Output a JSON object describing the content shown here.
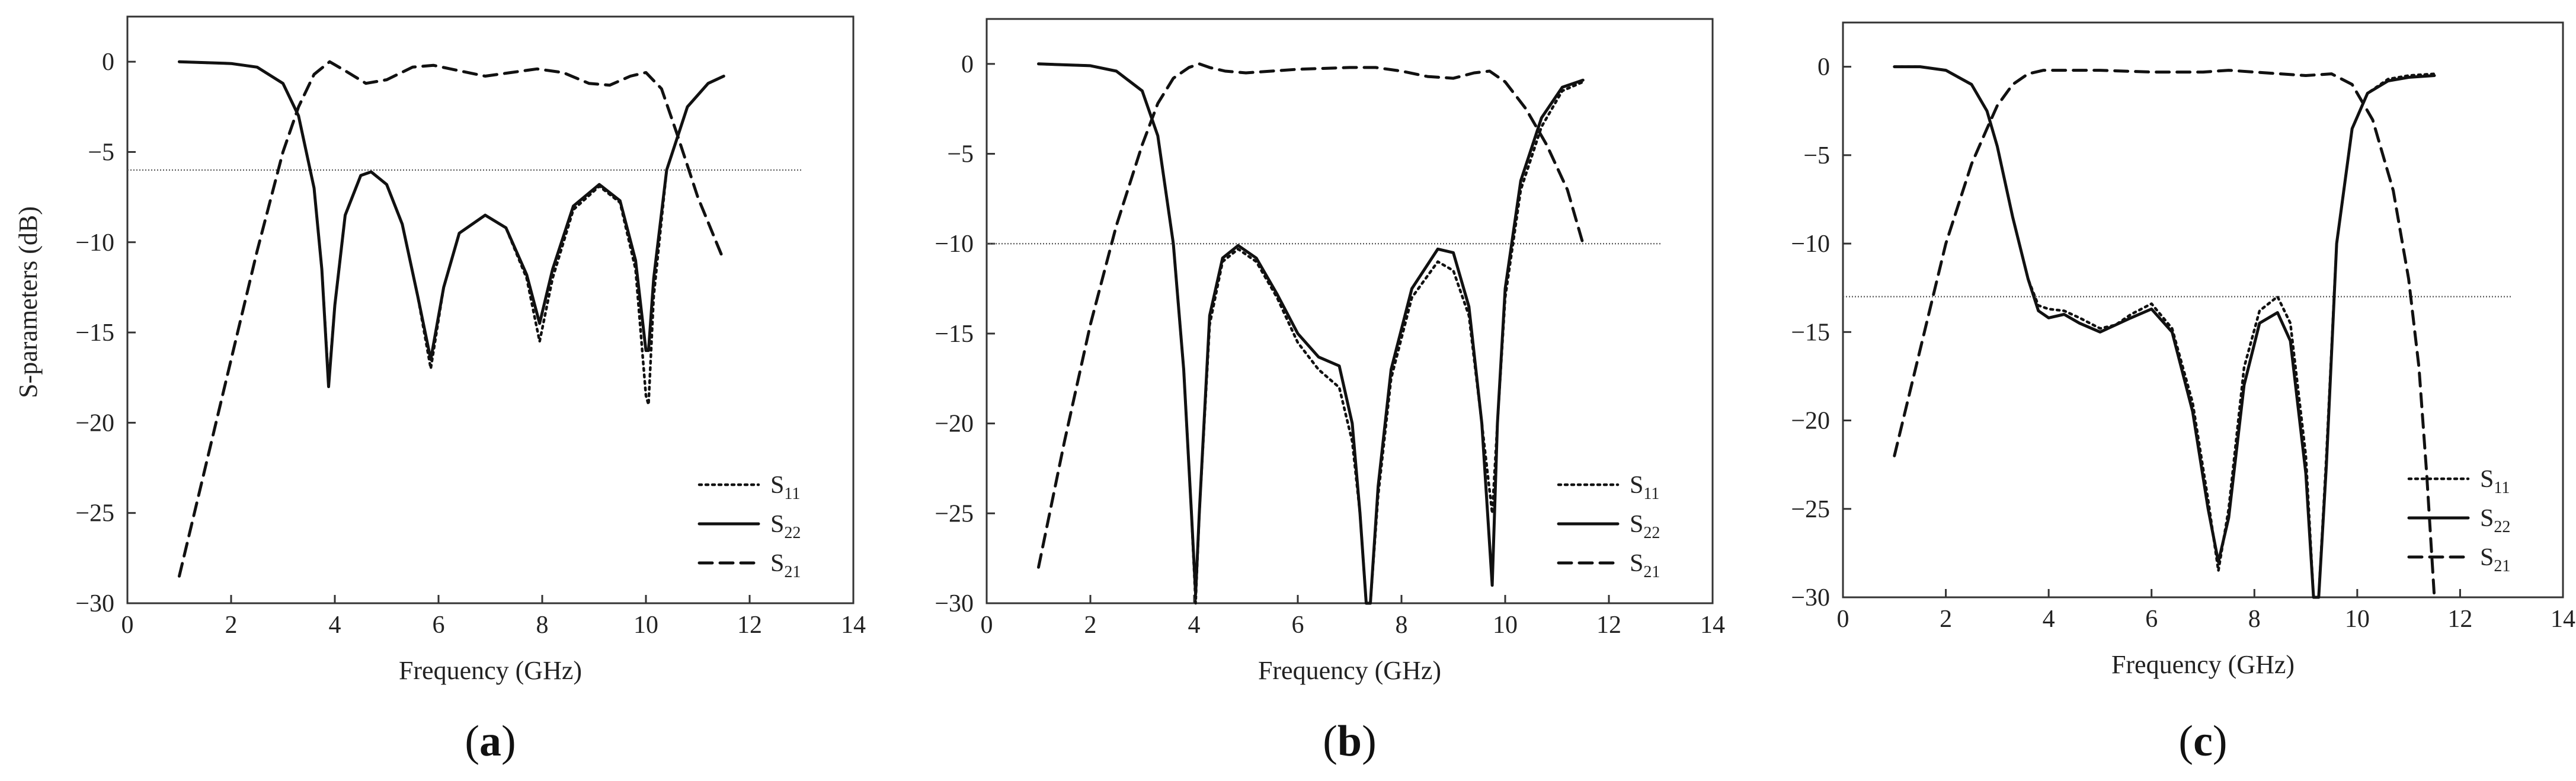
{
  "figure": {
    "shared_ylabel": "S-parameters (dB)"
  },
  "chart_data": [
    {
      "type": "line",
      "panel_label": "a",
      "title": "",
      "xlabel": "Frequency (GHz)",
      "ylabel": "S-parameters (dB)",
      "xlim": [
        0,
        14
      ],
      "ylim": [
        -30,
        2.5
      ],
      "xticks": [
        0,
        2,
        4,
        6,
        8,
        10,
        12,
        14
      ],
      "yticks": [
        0,
        -5,
        -10,
        -15,
        -20,
        -25,
        -30
      ],
      "reference_line": {
        "y": -6,
        "x_range": [
          0,
          13
        ]
      },
      "legend": {
        "position": "bottom-right",
        "entries": [
          {
            "key": "s11",
            "base": "S",
            "sub": "11",
            "style": "dotted"
          },
          {
            "key": "s22",
            "base": "S",
            "sub": "22",
            "style": "solid"
          },
          {
            "key": "s21",
            "base": "S",
            "sub": "21",
            "style": "dashed"
          }
        ]
      },
      "series": [
        {
          "key": "s11",
          "name": "S11",
          "x": [
            1.0,
            2.0,
            2.5,
            3.0,
            3.3,
            3.6,
            3.75,
            3.88,
            4.0,
            4.2,
            4.5,
            4.7,
            5.0,
            5.3,
            5.6,
            5.85,
            6.1,
            6.4,
            6.9,
            7.3,
            7.7,
            7.95,
            8.2,
            8.6,
            9.1,
            9.5,
            9.8,
            10.0,
            10.05,
            10.15,
            10.4,
            10.8,
            11.2,
            11.5
          ],
          "values": [
            0.0,
            -0.1,
            -0.3,
            -1.2,
            -3.0,
            -7.0,
            -11.5,
            -17.8,
            -13.5,
            -8.5,
            -6.3,
            -6.1,
            -6.8,
            -9.0,
            -13.0,
            -17.0,
            -12.5,
            -9.5,
            -8.5,
            -9.2,
            -12.0,
            -15.5,
            -12.0,
            -8.2,
            -6.9,
            -7.8,
            -11.5,
            -18.5,
            -19.0,
            -13.0,
            -6.0,
            -2.5,
            -1.2,
            -0.8
          ]
        },
        {
          "key": "s22",
          "name": "S22",
          "x": [
            1.0,
            2.0,
            2.5,
            3.0,
            3.3,
            3.6,
            3.75,
            3.88,
            4.0,
            4.2,
            4.5,
            4.7,
            5.0,
            5.3,
            5.6,
            5.85,
            6.1,
            6.4,
            6.9,
            7.3,
            7.7,
            7.95,
            8.2,
            8.6,
            9.1,
            9.5,
            9.8,
            10.0,
            10.05,
            10.15,
            10.4,
            10.8,
            11.2,
            11.5
          ],
          "values": [
            0.0,
            -0.1,
            -0.3,
            -1.2,
            -3.0,
            -7.0,
            -11.5,
            -18.0,
            -13.5,
            -8.5,
            -6.3,
            -6.1,
            -6.8,
            -9.0,
            -13.0,
            -16.5,
            -12.5,
            -9.5,
            -8.5,
            -9.2,
            -11.8,
            -14.5,
            -11.5,
            -8.0,
            -6.8,
            -7.7,
            -11.0,
            -16.0,
            -16.0,
            -12.0,
            -6.0,
            -2.5,
            -1.2,
            -0.8
          ]
        },
        {
          "key": "s21",
          "name": "S21",
          "x": [
            1.0,
            1.5,
            2.0,
            2.5,
            3.0,
            3.3,
            3.6,
            3.9,
            4.2,
            4.6,
            5.0,
            5.5,
            5.9,
            6.4,
            6.9,
            7.4,
            7.9,
            8.4,
            8.9,
            9.3,
            9.7,
            10.0,
            10.3,
            10.6,
            11.0,
            11.5
          ],
          "values": [
            -28.5,
            -22.5,
            -16.5,
            -10.5,
            -5.0,
            -2.5,
            -0.7,
            0.0,
            -0.5,
            -1.2,
            -1.0,
            -0.3,
            -0.2,
            -0.5,
            -0.8,
            -0.6,
            -0.4,
            -0.6,
            -1.2,
            -1.3,
            -0.8,
            -0.6,
            -1.5,
            -4.0,
            -7.5,
            -11.0
          ]
        }
      ]
    },
    {
      "type": "line",
      "panel_label": "b",
      "title": "",
      "xlabel": "Frequency (GHz)",
      "ylabel": "",
      "xlim": [
        0,
        14
      ],
      "ylim": [
        -30,
        2.5
      ],
      "xticks": [
        0,
        2,
        4,
        6,
        8,
        10,
        12,
        14
      ],
      "yticks": [
        0,
        -5,
        -10,
        -15,
        -20,
        -25,
        -30
      ],
      "reference_line": {
        "y": -10,
        "x_range": [
          0,
          13
        ]
      },
      "legend": {
        "position": "bottom-right",
        "entries": [
          {
            "key": "s11",
            "base": "S",
            "sub": "11",
            "style": "dotted"
          },
          {
            "key": "s22",
            "base": "S",
            "sub": "22",
            "style": "solid"
          },
          {
            "key": "s21",
            "base": "S",
            "sub": "21",
            "style": "dashed"
          }
        ]
      },
      "series": [
        {
          "key": "s11",
          "name": "S11",
          "x": [
            1.0,
            2.0,
            2.5,
            3.0,
            3.3,
            3.6,
            3.8,
            3.95,
            4.03,
            4.1,
            4.3,
            4.55,
            4.85,
            5.2,
            5.6,
            6.0,
            6.4,
            6.8,
            7.05,
            7.2,
            7.32,
            7.4,
            7.55,
            7.8,
            8.2,
            8.7,
            9.0,
            9.3,
            9.55,
            9.75,
            9.85,
            10.0,
            10.3,
            10.7,
            11.1,
            11.5
          ],
          "values": [
            0.0,
            -0.1,
            -0.4,
            -1.5,
            -4.0,
            -10.0,
            -17.0,
            -25.0,
            -30.0,
            -25.0,
            -14.5,
            -11.0,
            -10.3,
            -11.0,
            -13.0,
            -15.5,
            -17.0,
            -18.0,
            -21.0,
            -25.0,
            -30.0,
            -30.0,
            -24.0,
            -17.5,
            -13.0,
            -11.0,
            -11.5,
            -14.0,
            -20.0,
            -25.0,
            -20.0,
            -13.0,
            -7.0,
            -3.5,
            -1.5,
            -1.0
          ]
        },
        {
          "key": "s22",
          "name": "S22",
          "x": [
            1.0,
            2.0,
            2.5,
            3.0,
            3.3,
            3.6,
            3.8,
            3.95,
            4.03,
            4.1,
            4.3,
            4.55,
            4.85,
            5.2,
            5.6,
            6.0,
            6.4,
            6.8,
            7.05,
            7.2,
            7.32,
            7.4,
            7.55,
            7.8,
            8.2,
            8.7,
            9.0,
            9.3,
            9.55,
            9.75,
            9.85,
            10.0,
            10.3,
            10.7,
            11.1,
            11.5
          ],
          "values": [
            0.0,
            -0.1,
            -0.4,
            -1.5,
            -4.0,
            -10.0,
            -17.0,
            -25.0,
            -29.5,
            -25.0,
            -14.0,
            -10.8,
            -10.1,
            -10.8,
            -12.8,
            -15.0,
            -16.3,
            -16.8,
            -20.0,
            -25.0,
            -30.0,
            -30.0,
            -23.5,
            -17.0,
            -12.5,
            -10.3,
            -10.5,
            -13.5,
            -20.0,
            -29.0,
            -20.0,
            -12.5,
            -6.5,
            -3.0,
            -1.3,
            -0.9
          ]
        },
        {
          "key": "s21",
          "name": "S21",
          "x": [
            1.0,
            1.5,
            2.0,
            2.5,
            3.0,
            3.3,
            3.6,
            3.9,
            4.1,
            4.3,
            4.6,
            5.0,
            6.0,
            7.0,
            7.5,
            8.0,
            8.5,
            9.0,
            9.4,
            9.7,
            10.0,
            10.4,
            10.8,
            11.2,
            11.5
          ],
          "values": [
            -28.0,
            -21.0,
            -14.5,
            -9.0,
            -4.5,
            -2.2,
            -0.8,
            -0.2,
            0.0,
            -0.2,
            -0.4,
            -0.5,
            -0.3,
            -0.2,
            -0.2,
            -0.4,
            -0.7,
            -0.8,
            -0.5,
            -0.4,
            -1.0,
            -2.5,
            -4.5,
            -7.0,
            -10.0
          ]
        }
      ]
    },
    {
      "type": "line",
      "panel_label": "c",
      "title": "",
      "xlabel": "Frequency (GHz)",
      "ylabel": "",
      "xlim": [
        0,
        14
      ],
      "ylim": [
        -30,
        2.5
      ],
      "xticks": [
        0,
        2,
        4,
        6,
        8,
        10,
        12,
        14
      ],
      "yticks": [
        0,
        -5,
        -10,
        -15,
        -20,
        -25,
        -30
      ],
      "reference_line": {
        "y": -13,
        "x_range": [
          0,
          13
        ]
      },
      "legend": {
        "position": "bottom-right",
        "entries": [
          {
            "key": "s11",
            "base": "S",
            "sub": "11",
            "style": "dotted"
          },
          {
            "key": "s22",
            "base": "S",
            "sub": "22",
            "style": "solid"
          },
          {
            "key": "s21",
            "base": "S",
            "sub": "21",
            "style": "dashed"
          }
        ]
      },
      "series": [
        {
          "key": "s11",
          "name": "S11",
          "x": [
            1.0,
            1.5,
            2.0,
            2.5,
            2.8,
            3.0,
            3.3,
            3.6,
            3.8,
            4.0,
            4.3,
            4.6,
            5.0,
            5.3,
            5.6,
            6.0,
            6.4,
            6.8,
            7.1,
            7.3,
            7.5,
            7.8,
            8.1,
            8.45,
            8.7,
            9.0,
            9.15,
            9.25,
            9.4,
            9.6,
            9.9,
            10.2,
            10.6,
            11.0,
            11.5
          ],
          "values": [
            0.0,
            0.0,
            -0.2,
            -1.0,
            -2.5,
            -4.5,
            -8.5,
            -12.0,
            -13.5,
            -13.7,
            -13.8,
            -14.2,
            -14.8,
            -14.6,
            -14.0,
            -13.4,
            -14.8,
            -19.0,
            -24.5,
            -28.5,
            -25.0,
            -17.0,
            -13.8,
            -13.0,
            -14.5,
            -22.0,
            -30.0,
            -30.0,
            -22.0,
            -10.0,
            -3.5,
            -1.5,
            -0.7,
            -0.5,
            -0.4
          ]
        },
        {
          "key": "s22",
          "name": "S22",
          "x": [
            1.0,
            1.5,
            2.0,
            2.5,
            2.8,
            3.0,
            3.3,
            3.6,
            3.8,
            4.0,
            4.3,
            4.6,
            5.0,
            5.3,
            5.6,
            6.0,
            6.4,
            6.8,
            7.1,
            7.3,
            7.5,
            7.8,
            8.1,
            8.45,
            8.7,
            9.0,
            9.15,
            9.25,
            9.4,
            9.6,
            9.9,
            10.2,
            10.6,
            11.0,
            11.5
          ],
          "values": [
            0.0,
            0.0,
            -0.2,
            -1.0,
            -2.5,
            -4.5,
            -8.5,
            -12.0,
            -13.8,
            -14.2,
            -14.0,
            -14.5,
            -15.0,
            -14.6,
            -14.2,
            -13.7,
            -15.0,
            -19.5,
            -25.0,
            -28.0,
            -25.5,
            -18.0,
            -14.5,
            -13.9,
            -15.5,
            -23.0,
            -30.0,
            -30.0,
            -22.5,
            -10.0,
            -3.5,
            -1.5,
            -0.8,
            -0.6,
            -0.5
          ]
        },
        {
          "key": "s21",
          "name": "S21",
          "x": [
            1.0,
            1.5,
            2.0,
            2.5,
            2.8,
            3.0,
            3.3,
            3.6,
            3.9,
            4.2,
            5.0,
            6.0,
            7.0,
            7.5,
            8.0,
            8.5,
            9.0,
            9.5,
            9.9,
            10.3,
            10.7,
            11.0,
            11.2,
            11.35,
            11.5
          ],
          "values": [
            -22.0,
            -16.0,
            -10.0,
            -5.5,
            -3.5,
            -2.2,
            -1.0,
            -0.4,
            -0.2,
            -0.2,
            -0.2,
            -0.3,
            -0.3,
            -0.2,
            -0.3,
            -0.4,
            -0.5,
            -0.4,
            -1.0,
            -3.0,
            -7.0,
            -12.0,
            -17.0,
            -23.0,
            -30.0
          ]
        }
      ]
    }
  ]
}
